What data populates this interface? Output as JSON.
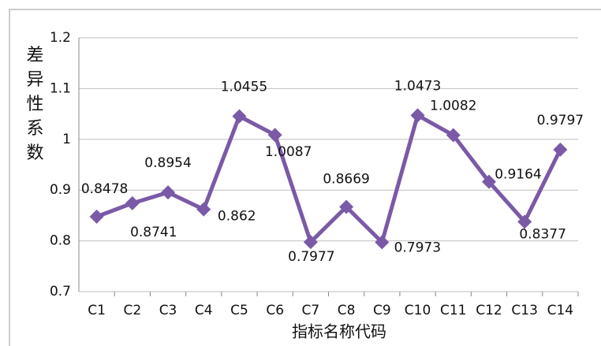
{
  "chart_data": {
    "type": "line",
    "xlabel": "指标名称代码",
    "ylabel": "差异性系数",
    "categories": [
      "C1",
      "C2",
      "C3",
      "C4",
      "C5",
      "C6",
      "C7",
      "C8",
      "C9",
      "C10",
      "C11",
      "C12",
      "C13",
      "C14"
    ],
    "series": [
      {
        "name": "差异性系数",
        "color": "#7a5aa6",
        "values": [
          0.8478,
          0.8741,
          0.8954,
          0.862,
          1.0455,
          1.0087,
          0.7977,
          0.8669,
          0.7973,
          1.0473,
          1.0082,
          0.9164,
          0.8377,
          0.9797
        ]
      }
    ],
    "ylim": [
      0.7,
      1.2
    ],
    "yticks": [
      {
        "value": 0.7,
        "label": "0.7"
      },
      {
        "value": 0.8,
        "label": "0.8"
      },
      {
        "value": 0.9,
        "label": "0.9"
      },
      1,
      {
        "value": 1.1,
        "label": "1.1"
      },
      {
        "value": 1.2,
        "label": "1.2"
      }
    ],
    "grid": true
  }
}
